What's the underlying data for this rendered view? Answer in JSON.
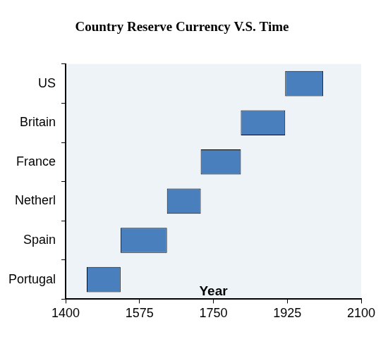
{
  "chart_data": {
    "type": "bar",
    "orientation": "horizontal",
    "title": "Country Reserve Currency V.S. Time",
    "x_label": "Year",
    "categories": [
      "US",
      "Britain",
      "France",
      "Netherl",
      "Spain",
      "Portugal"
    ],
    "values": [
      [
        1920,
        2010
      ],
      [
        1815,
        1920
      ],
      [
        1720,
        1815
      ],
      [
        1640,
        1720
      ],
      [
        1530,
        1640
      ],
      [
        1450,
        1530
      ]
    ],
    "color": "#4a7fbd",
    "xlim": [
      1400,
      2100
    ],
    "xticks": [
      1400,
      1575,
      1750,
      1925,
      2100
    ],
    "grid": false,
    "legend": false
  }
}
